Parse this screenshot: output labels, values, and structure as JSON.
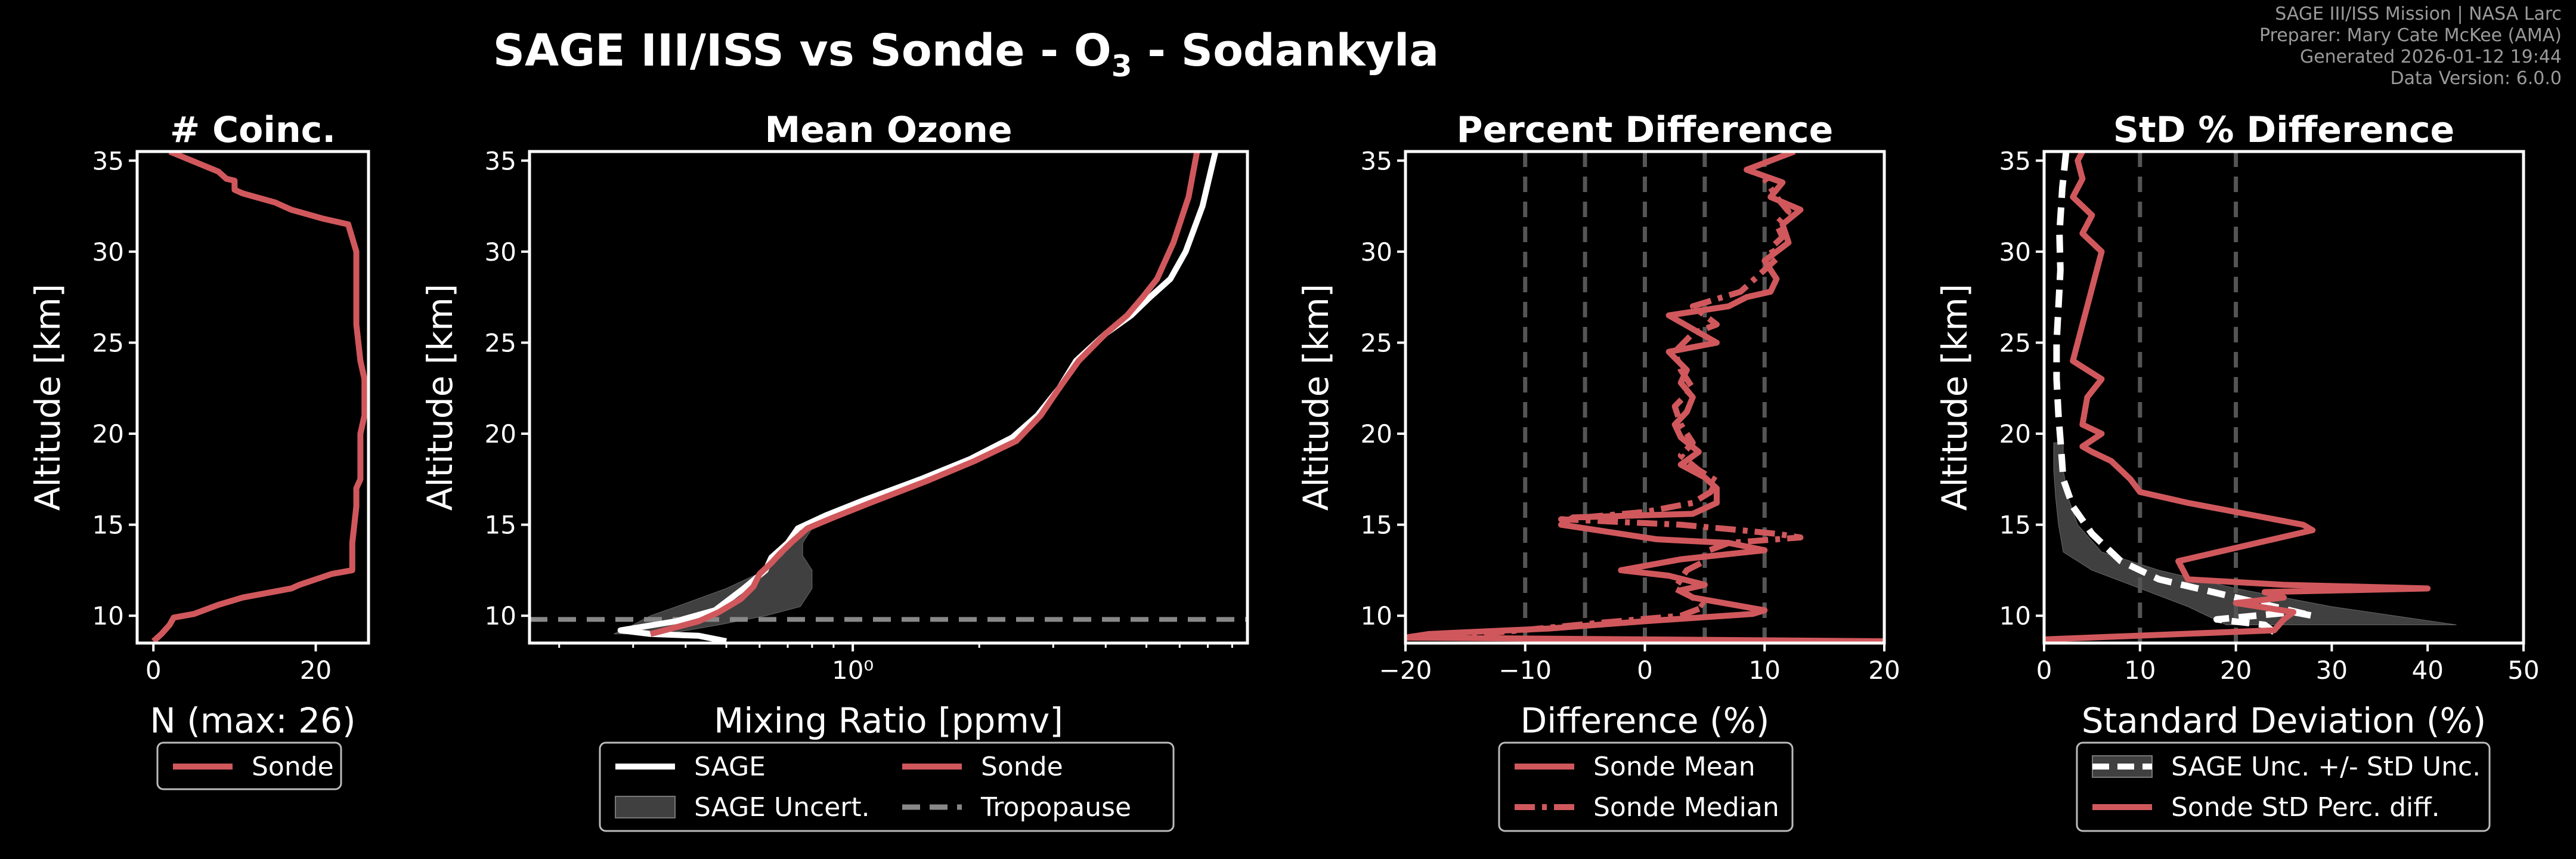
{
  "title": {
    "main": "SAGE III/ISS vs Sonde - O",
    "sub": "3",
    "suffix": " - Sodankyla"
  },
  "metadata": [
    "SAGE III/ISS Mission | NASA Larc",
    "Preparer: Mary Cate McKee (AMA)",
    "Generated 2026-01-12 19:44",
    "Data Version: 6.0.0"
  ],
  "colors": {
    "sonde": "#d0585c",
    "sage": "#ffffff",
    "uncert": "#555555",
    "grid": "#555555",
    "tropopause": "#888888"
  },
  "chart_data": [
    {
      "id": "coinc",
      "type": "line",
      "title": "# Coinc.",
      "xlabel": "N (max: 26)",
      "ylabel": "Altitude [km]",
      "xlim": [
        -2,
        26.5
      ],
      "ylim": [
        8.5,
        35.5
      ],
      "xticks": [
        0,
        20
      ],
      "yticks": [
        10,
        15,
        20,
        25,
        30,
        35
      ],
      "series": [
        {
          "name": "Sonde",
          "x": [
            0,
            1,
            2,
            2.5,
            5,
            8,
            11,
            17,
            18,
            20,
            22,
            24.5,
            24.5,
            25,
            25,
            25.5,
            25.5,
            26,
            26,
            25.5,
            25,
            25,
            24,
            21,
            17,
            15,
            11,
            10,
            10,
            9,
            8,
            2
          ],
          "y": [
            8.6,
            9.0,
            9.5,
            9.9,
            10.1,
            10.6,
            11.0,
            11.5,
            11.7,
            12.0,
            12.3,
            12.5,
            14.0,
            16.0,
            17.0,
            17.5,
            20.0,
            21.0,
            23.0,
            24.0,
            26.0,
            30.0,
            31.5,
            31.8,
            32.3,
            32.7,
            33.2,
            33.4,
            33.9,
            34.0,
            34.4,
            35.5
          ]
        }
      ],
      "legend": [
        "Sonde"
      ]
    },
    {
      "id": "ozone",
      "type": "line",
      "title": "Mean Ozone",
      "xlabel": "Mixing Ratio [ppmv]",
      "ylabel": "Altitude [km]",
      "xscale": "log",
      "xlim": [
        0.17,
        8.7
      ],
      "ylim": [
        8.5,
        35.5
      ],
      "xticks": [
        1
      ],
      "xtick_labels": [
        "10⁰"
      ],
      "yticks": [
        10,
        15,
        20,
        25,
        30,
        35
      ],
      "tropopause": 9.8,
      "series": [
        {
          "name": "SAGE",
          "x": [
            0.5,
            0.43,
            0.33,
            0.28,
            0.38,
            0.47,
            0.55,
            0.62,
            0.64,
            0.7,
            0.74,
            0.86,
            1.05,
            1.45,
            1.9,
            2.4,
            2.75,
            3.1,
            3.4,
            4.0,
            4.6,
            5.1,
            5.7,
            6.2,
            6.8,
            7.3
          ],
          "y": [
            8.6,
            8.9,
            9.0,
            9.2,
            9.7,
            10.3,
            11.5,
            12.5,
            13.2,
            14.0,
            14.8,
            15.5,
            16.3,
            17.5,
            18.6,
            19.8,
            21.0,
            22.5,
            24.0,
            25.5,
            26.5,
            27.5,
            28.5,
            30.0,
            32.5,
            35.5
          ]
        },
        {
          "name": "Sonde",
          "x": [
            0.33,
            0.37,
            0.43,
            0.48,
            0.54,
            0.58,
            0.6,
            0.64,
            0.67,
            0.72,
            0.78,
            0.9,
            1.1,
            1.5,
            1.95,
            2.45,
            2.8,
            3.1,
            3.45,
            4.0,
            4.5,
            4.9,
            5.3,
            5.8,
            6.3,
            6.6
          ],
          "y": [
            9.0,
            9.3,
            9.7,
            10.2,
            10.9,
            11.6,
            12.3,
            12.9,
            13.4,
            14.1,
            14.8,
            15.4,
            16.2,
            17.4,
            18.5,
            19.6,
            21.0,
            22.5,
            24.0,
            25.5,
            26.5,
            27.5,
            28.5,
            30.5,
            33.0,
            35.5
          ]
        },
        {
          "name": "SAGE Uncert.",
          "type": "band",
          "lower": [
            0.27,
            0.3,
            0.33,
            0.38,
            0.5,
            0.62,
            0.68,
            0.72,
            0.78
          ],
          "upper": [
            0.36,
            0.48,
            0.62,
            0.75,
            0.8,
            0.8,
            0.76,
            0.76,
            0.8
          ],
          "y": [
            9.0,
            9.5,
            10.0,
            10.5,
            11.5,
            12.5,
            13.3,
            14.0,
            14.8
          ]
        }
      ],
      "legend": [
        "SAGE",
        "SAGE Uncert.",
        "Sonde",
        "Tropopause"
      ]
    },
    {
      "id": "pctdiff",
      "type": "line",
      "title": "Percent Difference",
      "xlabel": "Difference (%)",
      "ylabel": "Altitude [km]",
      "xlim": [
        -20,
        20
      ],
      "ylim": [
        8.5,
        35.5
      ],
      "xticks": [
        -20,
        -10,
        0,
        10,
        20
      ],
      "yticks": [
        10,
        15,
        20,
        25,
        30,
        35
      ],
      "vlines": [
        -10,
        -5,
        0,
        5,
        10
      ],
      "series": [
        {
          "name": "Sonde Mean",
          "x": [
            20,
            -20,
            -18,
            -8,
            0,
            9,
            10,
            4,
            3,
            5,
            2,
            -2,
            3,
            10,
            7,
            1,
            -3,
            -7,
            -6,
            4,
            6,
            6,
            5,
            3,
            4.5,
            3,
            2.5,
            3.5,
            4,
            3,
            3.5,
            2,
            6,
            2,
            7,
            8.5,
            10.5,
            11,
            10,
            12,
            11.5,
            13,
            10.5,
            11.5,
            8.5,
            12.5
          ],
          "y": [
            8.6,
            8.8,
            9.0,
            9.3,
            9.7,
            10.1,
            10.3,
            11.0,
            11.4,
            11.7,
            12.2,
            12.5,
            13.1,
            13.6,
            14.0,
            14.2,
            14.6,
            15.0,
            15.4,
            15.6,
            16.2,
            17.0,
            17.6,
            18.3,
            19.0,
            19.8,
            20.5,
            21.2,
            22.0,
            22.8,
            23.5,
            24.5,
            25.0,
            26.5,
            27.0,
            27.5,
            27.8,
            28.5,
            29.5,
            30.5,
            31.5,
            32.3,
            33.0,
            33.8,
            34.5,
            35.5
          ]
        },
        {
          "name": "Sonde Median",
          "x": [
            -20,
            -12,
            -4,
            3,
            5,
            4,
            2.5,
            3.5,
            5,
            5,
            7,
            13,
            11,
            8,
            3,
            -7,
            0,
            4,
            5.5,
            6,
            4.5,
            3,
            4,
            3,
            2.5,
            4,
            3,
            2.5,
            4,
            6,
            4,
            8,
            9,
            10,
            11,
            10.5,
            11.5,
            11,
            12,
            11,
            10
          ],
          "y": [
            8.8,
            9.1,
            9.6,
            10.0,
            10.5,
            11.0,
            11.5,
            12.5,
            13.0,
            13.5,
            14.0,
            14.3,
            14.5,
            14.7,
            15.0,
            15.3,
            15.7,
            16.2,
            16.8,
            17.4,
            18.0,
            18.8,
            19.5,
            20.5,
            21.5,
            22.5,
            23.5,
            24.5,
            25.5,
            26.0,
            27.0,
            27.8,
            28.4,
            29.0,
            29.6,
            30.2,
            30.8,
            31.5,
            32.2,
            33.0,
            34.0
          ]
        }
      ],
      "legend": [
        "Sonde Mean",
        "Sonde Median"
      ]
    },
    {
      "id": "stddiff",
      "type": "line",
      "title": "StD % Difference",
      "xlabel": "Standard Deviation (%)",
      "ylabel": "Altitude [km]",
      "xlim": [
        0,
        50
      ],
      "ylim": [
        8.5,
        35.5
      ],
      "xticks": [
        0,
        10,
        20,
        30,
        40,
        50
      ],
      "yticks": [
        10,
        15,
        20,
        25,
        30,
        35
      ],
      "vlines": [
        10,
        20
      ],
      "series": [
        {
          "name": "SAGE Unc. +/- StD Unc.",
          "x": [
            24,
            23,
            18,
            26,
            28,
            20,
            12,
            8,
            5,
            3,
            2,
            1.8,
            1.5,
            1.3,
            1.3,
            1.5,
            1.7,
            1.6,
            1.9,
            2.3
          ],
          "y": [
            9.1,
            9.5,
            9.8,
            10.2,
            10.0,
            11.0,
            12.0,
            13.0,
            14.5,
            16.0,
            17.5,
            19.0,
            21.0,
            23.0,
            25.0,
            27.0,
            29.0,
            31.0,
            33.5,
            35.5
          ]
        },
        {
          "name": "SAGE Unc. band",
          "type": "band",
          "lower": [
            19,
            15,
            10,
            5,
            2,
            1.5,
            1.2,
            1.0,
            1.0
          ],
          "upper": [
            43,
            30,
            20,
            12,
            6,
            3.5,
            2.5,
            2.0,
            2.0
          ],
          "y": [
            9.5,
            10.5,
            11.5,
            12.5,
            13.5,
            15.0,
            16.5,
            18.0,
            19.5
          ]
        },
        {
          "name": "Sonde StD Perc. diff.",
          "x": [
            0,
            24,
            25,
            26,
            20,
            25,
            23,
            40,
            25,
            15,
            14,
            28,
            27,
            20,
            15,
            10,
            9,
            7,
            5,
            4,
            6,
            4,
            4.5,
            6,
            3,
            4,
            5,
            6,
            4,
            5,
            3,
            4,
            3.5,
            4
          ],
          "y": [
            8.7,
            9.2,
            9.8,
            10.2,
            10.7,
            11.0,
            11.3,
            11.5,
            11.7,
            12.0,
            13.0,
            14.7,
            15.0,
            15.7,
            16.2,
            16.8,
            17.5,
            18.5,
            19.0,
            19.3,
            20.0,
            20.5,
            22.0,
            23.0,
            24.0,
            26.0,
            28.0,
            30.0,
            31.0,
            32.0,
            33.0,
            34.0,
            35.0,
            35.5
          ]
        }
      ],
      "legend": [
        "SAGE Unc. +/- StD Unc.",
        "Sonde StD Perc. diff."
      ]
    }
  ]
}
